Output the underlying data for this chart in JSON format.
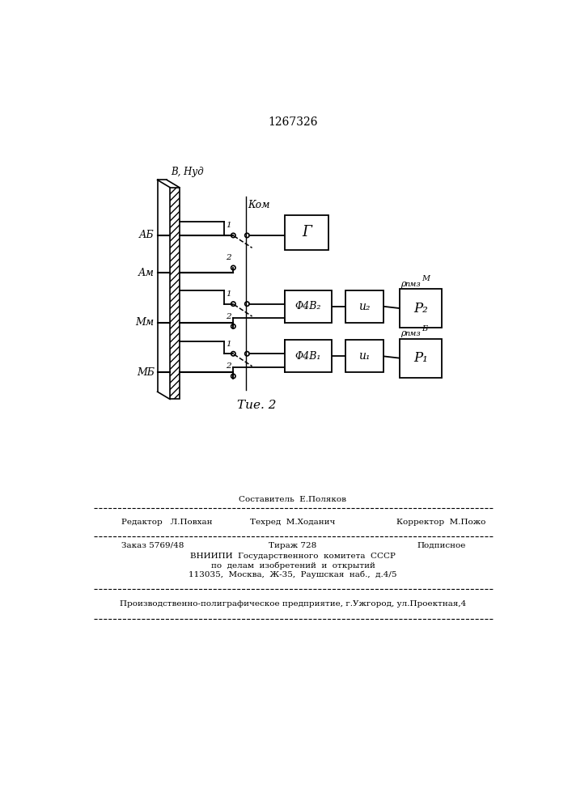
{
  "title": "1267326",
  "fig_caption": "Τие. 2",
  "background_color": "#ffffff",
  "line_color": "#000000",
  "text_color": "#000000",
  "probe_label": "В, Нуд",
  "label_AB": "АБ",
  "label_AM": "Ам",
  "label_MM": "Мм",
  "label_MB": "МБ",
  "label_KOM": "Ком",
  "box_G": "Г",
  "box_F2": "Φ4В₂",
  "box_I2": "и₂",
  "box_P2": "Р₂",
  "box_F1": "Φ4В₁",
  "box_I1": "и₁",
  "box_P1": "Р₁",
  "label_pM": "ρ",
  "label_pM2": "пмз",
  "label_pB": "ρ",
  "label_pB2": "пмз",
  "sup_M": "М",
  "sup_B": "Б",
  "footer_sestavitel": "Составитель  Е.Поляков",
  "footer_editor": "Редактор   Л.Повхан",
  "footer_techred": "Техред  М.Ходанич",
  "footer_corrector": "Корректор  М.Пожо",
  "footer_order": "Заказ 5769/48",
  "footer_tirazh": "Тираж 728",
  "footer_podpisnoe": "Подписное",
  "footer_vniipи": "ВНИИПИ  Государственного  комитета  СССР",
  "footer_po_delam": "по  делам  изобретений  и  открытий",
  "footer_address": "113035,  Москва,  Ж-35,  Раушская  наб.,  д.4/5",
  "footer_proizv": "Производственно-полиграфическое предприятие, г.Ужгород, ул.Проектная,4"
}
